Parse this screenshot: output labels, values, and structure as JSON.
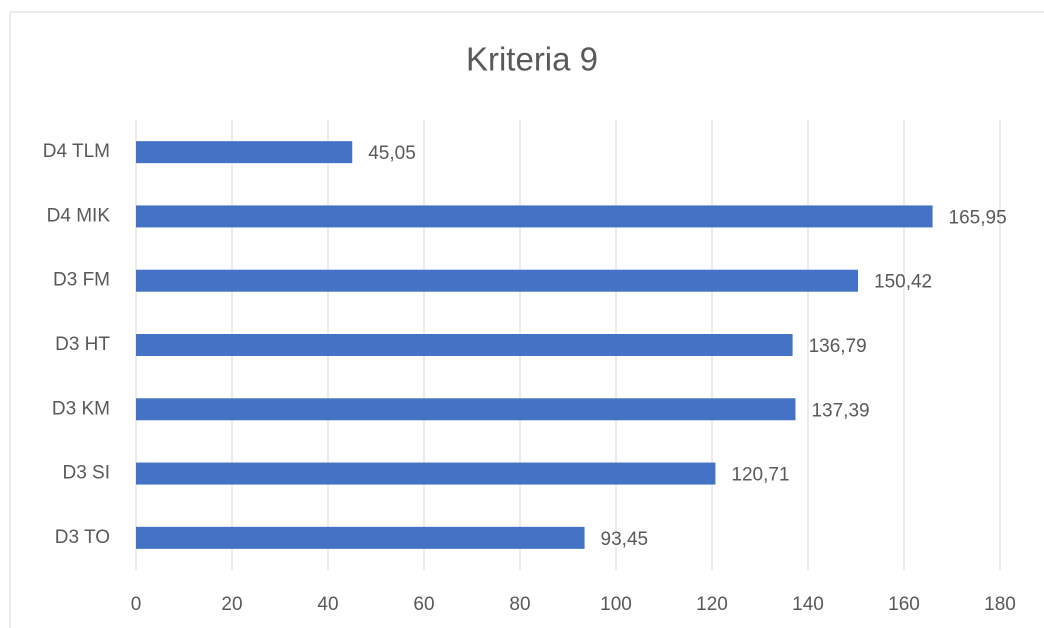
{
  "chart_data": {
    "type": "bar",
    "orientation": "horizontal",
    "title": "Kriteria 9",
    "categories": [
      "D4 TLM",
      "D4 MIK",
      "D3 FM",
      "D3 HT",
      "D3 KM",
      "D3 SI",
      "D3 TO"
    ],
    "values": [
      45.05,
      165.95,
      150.42,
      136.79,
      137.39,
      120.71,
      93.45
    ],
    "value_labels": [
      "45,05",
      "165,95",
      "150,42",
      "136,79",
      "137,39",
      "120,71",
      "93,45"
    ],
    "color": "#4472c4",
    "xlim": [
      0,
      180
    ],
    "xticks": [
      0,
      20,
      40,
      60,
      80,
      100,
      120,
      140,
      160,
      180
    ],
    "grid": true
  }
}
